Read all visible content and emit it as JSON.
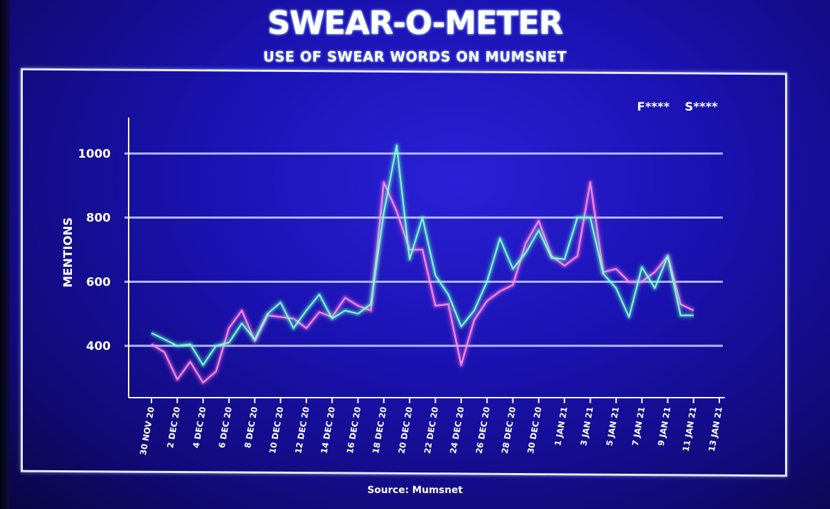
{
  "chart_data": {
    "type": "line",
    "title": "SWEAR-O-METER",
    "subtitle": "USE OF SWEAR WORDS ON MUMSNET",
    "ylabel": "MENTIONS",
    "xlabel": "",
    "source": "Source: Mumsnet",
    "ylim": [
      250,
      1100
    ],
    "yticks": [
      400,
      600,
      800,
      1000
    ],
    "grid": true,
    "legend_position": "top-right",
    "x_ticks": [
      "30 NOV 20",
      "2 DEC 20",
      "4 DEC 20",
      "6 DEC 20",
      "8 DEC 20",
      "10 DEC 20",
      "12 DEC 20",
      "14 DEC 20",
      "16 DEC 20",
      "18 DEC 20",
      "20 DEC 20",
      "22 DEC 20",
      "24 DEC 20",
      "26 DEC 20",
      "28 DEC 20",
      "30 DEC 20",
      "1 JAN 21",
      "3 JAN 21",
      "5 JAN 21",
      "7 JAN 21",
      "9 JAN 21",
      "11 JAN 21",
      "13 JAN 21"
    ],
    "x": [
      "30 Nov 20",
      "1 Dec 20",
      "2 Dec 20",
      "3 Dec 20",
      "4 Dec 20",
      "5 Dec 20",
      "6 Dec 20",
      "7 Dec 20",
      "8 Dec 20",
      "9 Dec 20",
      "10 Dec 20",
      "11 Dec 20",
      "12 Dec 20",
      "13 Dec 20",
      "14 Dec 20",
      "15 Dec 20",
      "16 Dec 20",
      "17 Dec 20",
      "18 Dec 20",
      "19 Dec 20",
      "20 Dec 20",
      "21 Dec 20",
      "22 Dec 20",
      "23 Dec 20",
      "24 Dec 20",
      "25 Dec 20",
      "26 Dec 20",
      "27 Dec 20",
      "28 Dec 20",
      "29 Dec 20",
      "30 Dec 20",
      "31 Dec 20",
      "1 Jan 21",
      "2 Jan 21",
      "3 Jan 21",
      "4 Jan 21",
      "5 Jan 21",
      "6 Jan 21",
      "7 Jan 21",
      "8 Jan 21",
      "9 Jan 21",
      "10 Jan 21",
      "11 Jan 21"
    ],
    "series": [
      {
        "name": "F****",
        "color": "#ff5fe0",
        "values": [
          405,
          380,
          295,
          350,
          285,
          320,
          455,
          510,
          415,
          495,
          490,
          485,
          455,
          505,
          490,
          550,
          525,
          510,
          910,
          820,
          700,
          700,
          525,
          530,
          340,
          480,
          540,
          570,
          590,
          720,
          790,
          680,
          650,
          680,
          910,
          630,
          640,
          600,
          600,
          630,
          680,
          530,
          510
        ]
      },
      {
        "name": "S****",
        "color": "#4dffc0",
        "values": [
          440,
          420,
          400,
          405,
          340,
          400,
          410,
          470,
          420,
          500,
          535,
          455,
          510,
          560,
          485,
          510,
          500,
          530,
          815,
          1025,
          670,
          800,
          620,
          560,
          460,
          510,
          600,
          735,
          640,
          690,
          760,
          675,
          670,
          800,
          800,
          625,
          580,
          490,
          645,
          580,
          680,
          495,
          495
        ]
      }
    ]
  }
}
